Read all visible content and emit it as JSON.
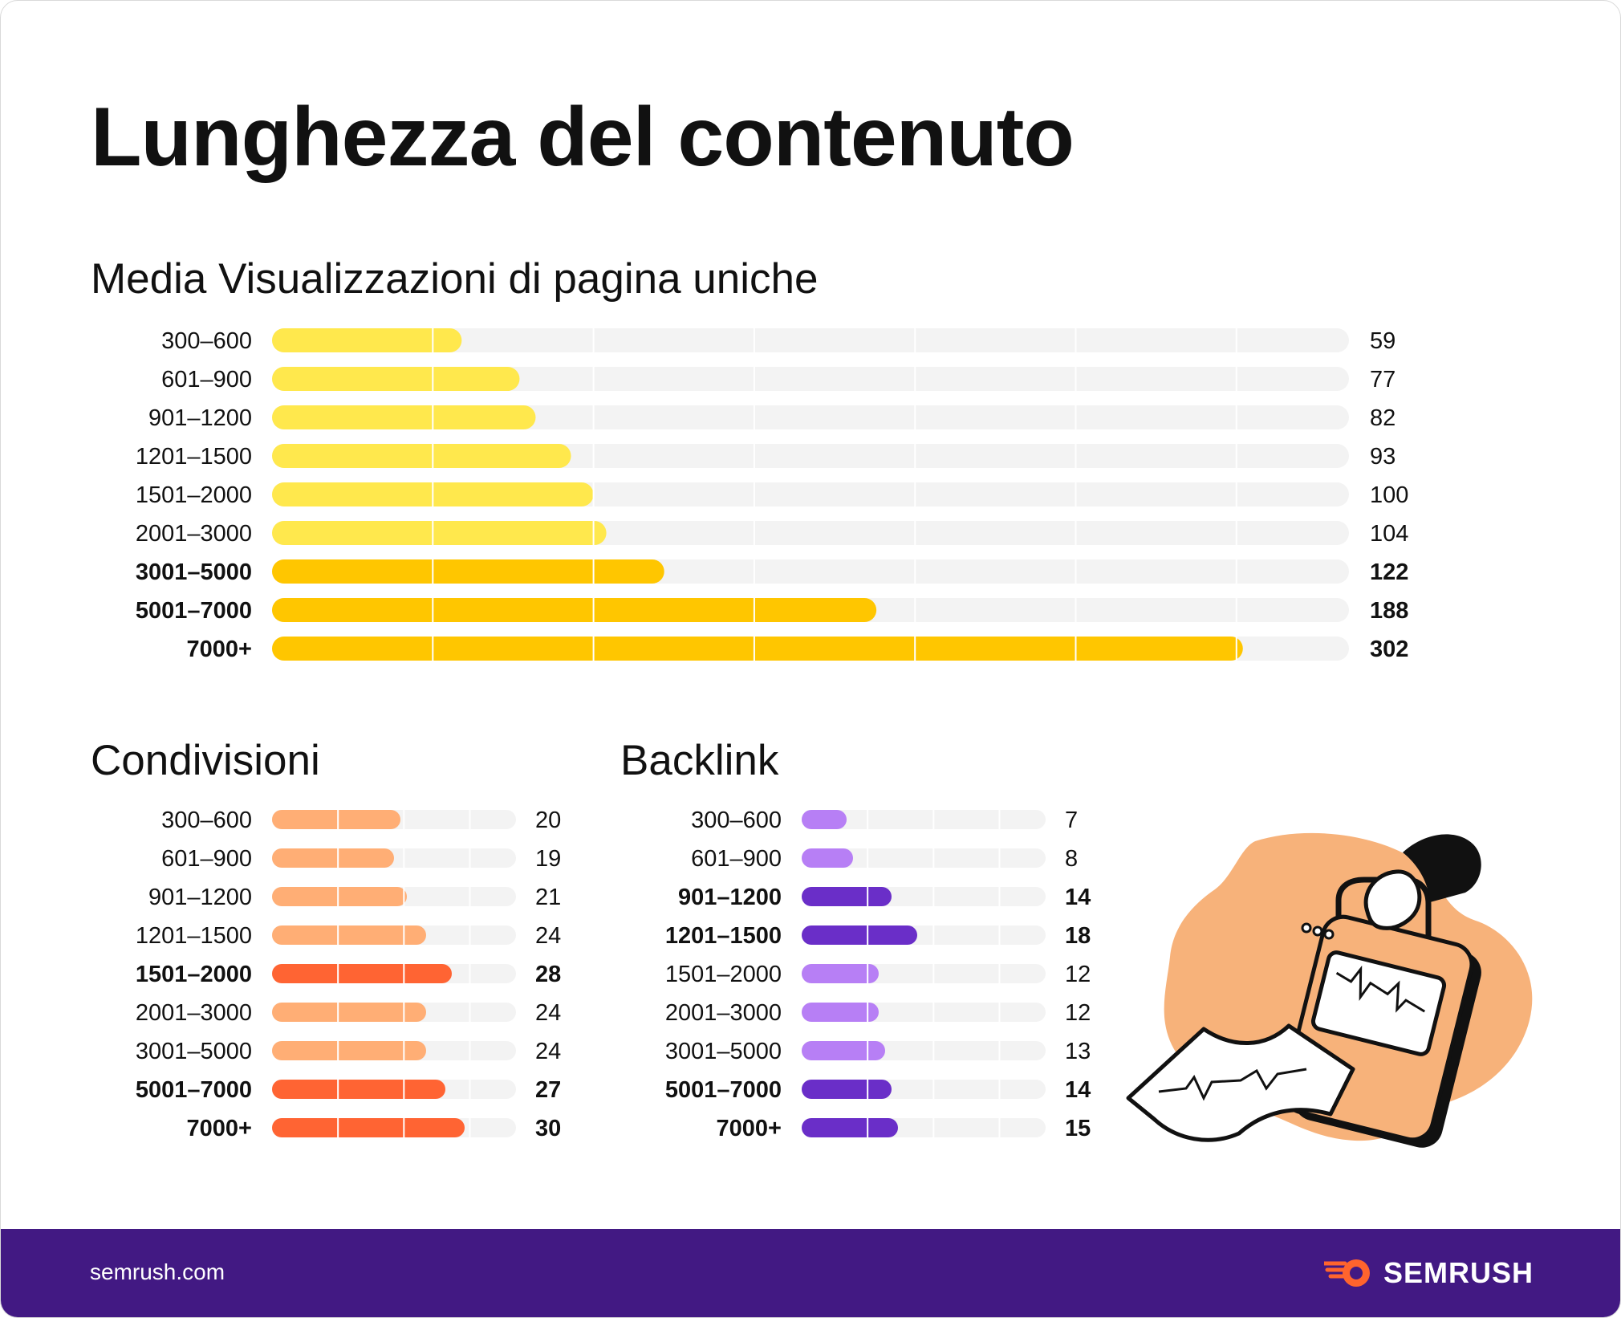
{
  "title": "Lunghezza del contenuto",
  "footer": {
    "site": "semrush.com",
    "brand": "SEMRUSH"
  },
  "colors": {
    "track": "#f3f3f3",
    "views_light": "#ffe84d",
    "views_dark": "#ffc600",
    "shares_light": "#ffae75",
    "shares_dark": "#ff6433",
    "backlinks_light": "#b77ff5",
    "backlinks_dark": "#6a2ec8",
    "footer_bg": "#421983",
    "brand_orange": "#ff642d"
  },
  "chart_data": [
    {
      "id": "views",
      "type": "bar",
      "title": "Media Visualizzazioni di pagina uniche",
      "xlim": [
        0,
        335
      ],
      "categories": [
        "300–600",
        "601–900",
        "901–1200",
        "1201–1500",
        "1501–2000",
        "2001–3000",
        "3001–5000",
        "5001–7000",
        "7000+"
      ],
      "values": [
        59,
        77,
        82,
        93,
        100,
        104,
        122,
        188,
        302
      ],
      "highlight": [
        false,
        false,
        false,
        false,
        false,
        false,
        true,
        true,
        true
      ]
    },
    {
      "id": "shares",
      "type": "bar",
      "title": "Condivisioni",
      "xlim": [
        0,
        38
      ],
      "categories": [
        "300–600",
        "601–900",
        "901–1200",
        "1201–1500",
        "1501–2000",
        "2001–3000",
        "3001–5000",
        "5001–7000",
        "7000+"
      ],
      "values": [
        20,
        19,
        21,
        24,
        28,
        24,
        24,
        27,
        30
      ],
      "highlight": [
        false,
        false,
        false,
        false,
        true,
        false,
        false,
        true,
        true
      ]
    },
    {
      "id": "backlinks",
      "type": "bar",
      "title": "Backlink",
      "xlim": [
        0,
        38
      ],
      "categories": [
        "300–600",
        "601–900",
        "901–1200",
        "1201–1500",
        "1501–2000",
        "2001–3000",
        "3001–5000",
        "5001–7000",
        "7000+"
      ],
      "values": [
        7,
        8,
        14,
        18,
        12,
        12,
        13,
        14,
        15
      ],
      "highlight": [
        false,
        false,
        true,
        true,
        false,
        false,
        false,
        true,
        true
      ]
    }
  ]
}
